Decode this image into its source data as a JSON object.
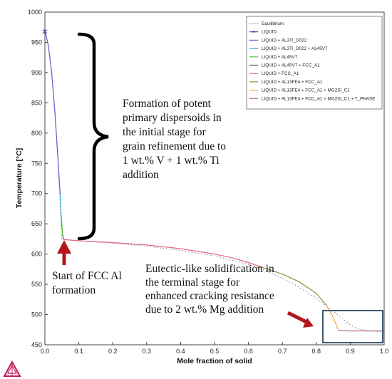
{
  "chart_data": {
    "type": "line",
    "xlabel": "Mole fraction of solid",
    "ylabel": "Temperature [°C]",
    "xlim": [
      0,
      1.0
    ],
    "ylim": [
      450,
      1000
    ],
    "x_ticks": [
      "0.0",
      "0.1",
      "0.2",
      "0.3",
      "0.4",
      "0.5",
      "0.6",
      "0.7",
      "0.8",
      "0.9",
      "1.0"
    ],
    "y_ticks": [
      "450",
      "500",
      "550",
      "600",
      "650",
      "700",
      "750",
      "800",
      "850",
      "900",
      "950",
      "1000"
    ],
    "legend_position": "top-right",
    "grid": false,
    "series": [
      {
        "name": "Equilibrium",
        "style": "dotted",
        "color": "#7f7fbf",
        "points": [
          [
            0,
            970
          ],
          [
            0.01,
            945
          ],
          [
            0.02,
            900
          ],
          [
            0.03,
            830
          ],
          [
            0.04,
            740
          ],
          [
            0.05,
            625
          ],
          [
            0.1,
            622
          ],
          [
            0.2,
            618
          ],
          [
            0.3,
            613
          ],
          [
            0.4,
            606
          ],
          [
            0.5,
            597
          ],
          [
            0.6,
            583
          ],
          [
            0.65,
            573
          ],
          [
            0.7,
            560
          ],
          [
            0.75,
            545
          ],
          [
            0.8,
            527
          ],
          [
            0.85,
            506
          ],
          [
            0.88,
            492
          ],
          [
            0.9,
            483
          ],
          [
            0.92,
            477
          ],
          [
            0.94,
            474
          ],
          [
            0.96,
            473
          ],
          [
            0.98,
            472
          ],
          [
            1.0,
            471
          ]
        ]
      },
      {
        "name": "LIQUID",
        "style": "marker",
        "color": "#1f2d8f",
        "points": [
          [
            0,
            968
          ]
        ]
      },
      {
        "name": "LIQUID + AL3TI_D022",
        "style": "solid",
        "color": "#7b4fc9",
        "points": [
          [
            0,
            970
          ],
          [
            0.01,
            945
          ],
          [
            0.02,
            900
          ],
          [
            0.03,
            830
          ],
          [
            0.04,
            745
          ],
          [
            0.045,
            700
          ]
        ]
      },
      {
        "name": "LIQUID + AL3TI_D022 + AL45V7",
        "style": "solid",
        "color": "#2ab0d8",
        "points": [
          [
            0.045,
            700
          ],
          [
            0.05,
            640
          ]
        ]
      },
      {
        "name": "LIQUID + AL45V7",
        "style": "solid",
        "color": "#5cbf3e",
        "points": [
          [
            0.049,
            660
          ],
          [
            0.052,
            632
          ]
        ]
      },
      {
        "name": "LIQUID + AL45V7 + FCC_A1",
        "style": "solid",
        "color": "#555555",
        "points": [
          [
            0.052,
            632
          ],
          [
            0.055,
            624
          ]
        ]
      },
      {
        "name": "LIQUID + FCC_A1",
        "style": "solid",
        "color": "#e8677a",
        "points": [
          [
            0.055,
            624
          ],
          [
            0.1,
            622
          ],
          [
            0.2,
            619
          ],
          [
            0.3,
            615
          ],
          [
            0.4,
            609
          ],
          [
            0.5,
            600
          ],
          [
            0.55,
            594
          ],
          [
            0.6,
            586
          ],
          [
            0.63,
            580
          ]
        ]
      },
      {
        "name": "LIQUID + AL13FE4 + FCC_A1",
        "style": "solid",
        "color": "#8f8f3f",
        "points": [
          [
            0.63,
            580
          ],
          [
            0.7,
            567
          ],
          [
            0.75,
            554
          ],
          [
            0.8,
            535
          ],
          [
            0.83,
            515
          ]
        ]
      },
      {
        "name": "LIQUID + AL13FE4 + FCC_A1 + MG2SI_C1",
        "style": "solid",
        "color": "#f2a93b",
        "points": [
          [
            0.83,
            515
          ],
          [
            0.85,
            495
          ],
          [
            0.865,
            475
          ]
        ]
      },
      {
        "name": "LIQUID + AL13FE4 + FCC_A1 + MG2SI_C1 + T_PHASE",
        "style": "solid",
        "color": "#b06a8a",
        "points": [
          [
            0.865,
            474
          ],
          [
            0.9,
            473
          ],
          [
            0.95,
            473
          ],
          [
            1.0,
            473
          ]
        ]
      }
    ],
    "annotations": {
      "primary": [
        "Formation of potent",
        "primary dispersoids in",
        "the initial stage for",
        "grain refinement due to",
        "1 wt.% V + 1 wt.% Ti",
        "addition"
      ],
      "fcc_start": [
        "Start of FCC Al",
        "formation"
      ],
      "eutectic": [
        "Eutectic-like solidification in",
        "the terminal stage for",
        "enhanced cracking resistance",
        "due to 2 wt.% Mg addition"
      ]
    },
    "colors": {
      "arrow": "#b3161b",
      "highlight_box": "#17324f",
      "brace": "#000000"
    }
  }
}
